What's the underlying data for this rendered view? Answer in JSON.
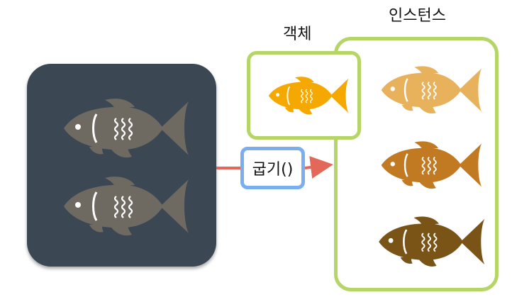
{
  "labels": {
    "object": "객체",
    "instance": "인스턴스",
    "method": "굽기()"
  },
  "colors": {
    "class_box": "#3b4753",
    "class_fish": "#6e6a62",
    "box_border_green": "#b5d567",
    "method_border_blue": "#7aaeef",
    "arrow_red": "#e4685a",
    "object_fish": "#f5a800",
    "instance_fish_1": "#e8b25c",
    "instance_fish_2": "#c27a22",
    "instance_fish_3": "#7a5416"
  },
  "icons": {
    "class_fish": "fish-icon",
    "object_fish": "fish-icon",
    "instance_fish": "fish-icon"
  }
}
